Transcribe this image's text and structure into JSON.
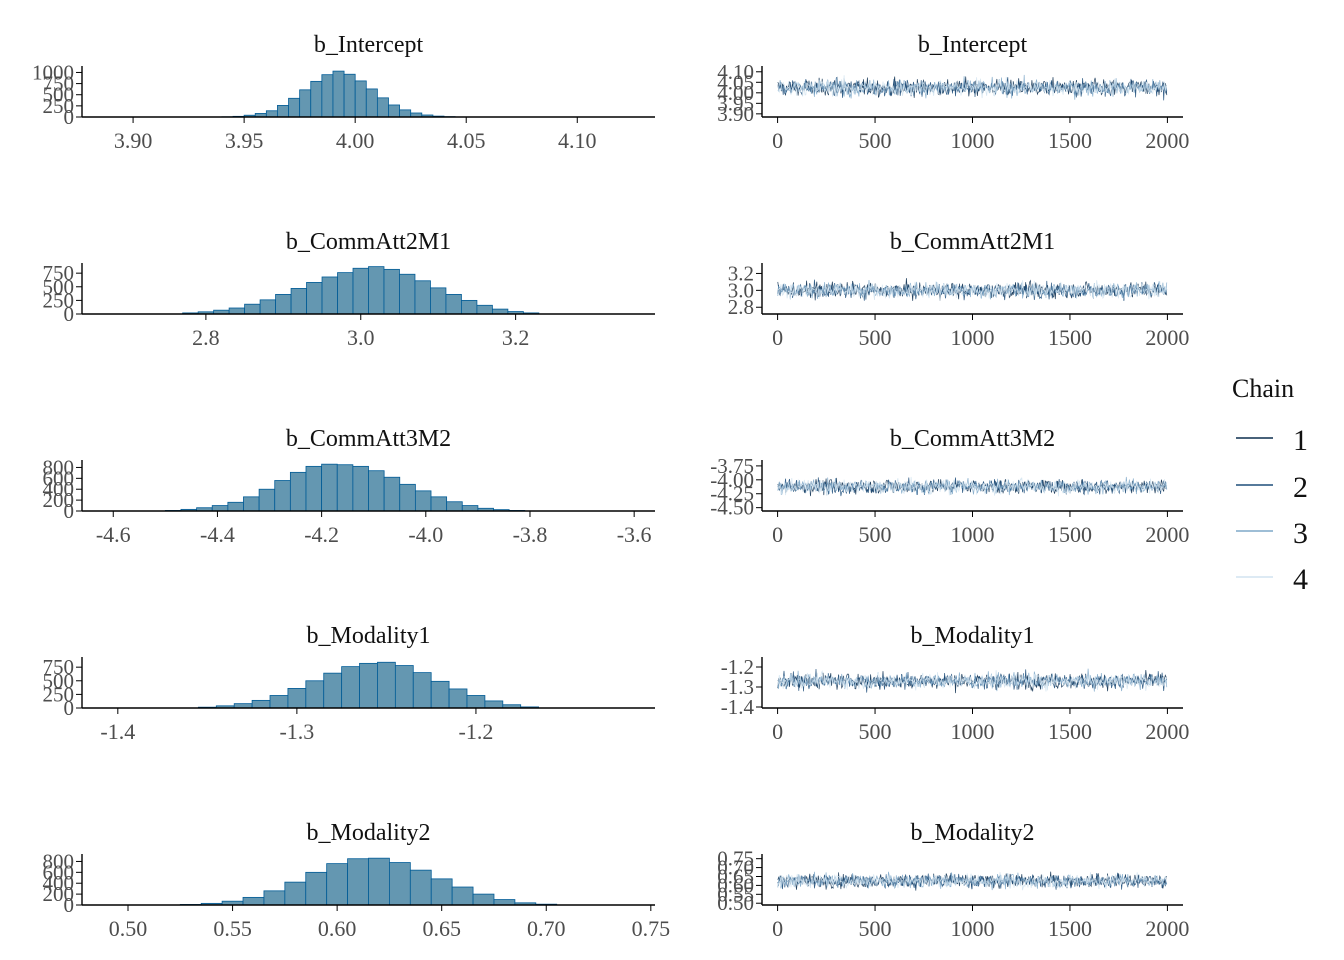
{
  "legend": {
    "title": "Chain",
    "chains": [
      {
        "label": "1",
        "color": "#0b2e4f"
      },
      {
        "label": "2",
        "color": "#1e4e7a"
      },
      {
        "label": "3",
        "color": "#7fa9c9"
      },
      {
        "label": "4",
        "color": "#d2e3f0"
      }
    ]
  },
  "colors": {
    "hist_fill": "#6497b1",
    "hist_edge": "#005b96",
    "axis": "#000000",
    "tick_text": "#4d4d4d"
  },
  "chart_data": [
    {
      "type": "bar",
      "title": "b_Intercept",
      "xticks": [
        "3.90",
        "3.95",
        "4.00",
        "4.05",
        "4.10"
      ],
      "xlim": [
        3.877,
        4.135
      ],
      "yticks": [
        "0",
        "250",
        "500",
        "750",
        "1000"
      ],
      "ylim": [
        0,
        1100
      ],
      "bin_start": 3.94,
      "bin_width": 0.005,
      "values": [
        5,
        15,
        40,
        80,
        140,
        260,
        420,
        610,
        800,
        950,
        1030,
        960,
        810,
        630,
        430,
        270,
        160,
        90,
        45,
        20,
        8
      ]
    },
    {
      "type": "line",
      "title": "b_Intercept",
      "xticks": [
        "0",
        "500",
        "1000",
        "1500",
        "2000"
      ],
      "xlim": [
        -80,
        2080
      ],
      "yticks": [
        "3.90",
        "3.95",
        "4.00",
        "4.05",
        "4.10"
      ],
      "ylim": [
        3.885,
        4.118
      ],
      "series_center": 4.025,
      "series_spread": 0.03
    },
    {
      "type": "bar",
      "title": "b_CommAtt2M1",
      "xticks": [
        "2.8",
        "3.0",
        "3.2"
      ],
      "xlim": [
        2.64,
        3.38
      ],
      "yticks": [
        "0",
        "250",
        "500",
        "750"
      ],
      "ylim": [
        0,
        900
      ],
      "bin_start": 2.77,
      "bin_width": 0.02,
      "values": [
        20,
        40,
        70,
        110,
        180,
        260,
        360,
        470,
        580,
        680,
        760,
        840,
        870,
        820,
        730,
        610,
        480,
        360,
        250,
        160,
        90,
        45,
        20
      ]
    },
    {
      "type": "line",
      "title": "b_CommAtt2M1",
      "xticks": [
        "0",
        "500",
        "1000",
        "1500",
        "2000"
      ],
      "xlim": [
        -80,
        2080
      ],
      "yticks": [
        "2.8",
        "3.0",
        "3.2"
      ],
      "ylim": [
        2.72,
        3.3
      ],
      "series_center": 3.0,
      "series_spread": 0.07
    },
    {
      "type": "bar",
      "title": "b_CommAtt3M2",
      "xticks": [
        "-4.6",
        "-4.4",
        "-4.2",
        "-4.0",
        "-3.8",
        "-3.6"
      ],
      "xlim": [
        -4.66,
        -3.56
      ],
      "yticks": [
        "0",
        "200",
        "400",
        "600",
        "800"
      ],
      "ylim": [
        0,
        900
      ],
      "bin_start": -4.5,
      "bin_width": 0.03,
      "values": [
        10,
        30,
        60,
        100,
        160,
        260,
        400,
        560,
        710,
        820,
        860,
        850,
        820,
        740,
        620,
        490,
        370,
        260,
        170,
        100,
        50,
        25,
        10
      ]
    },
    {
      "type": "line",
      "title": "b_CommAtt3M2",
      "xticks": [
        "0",
        "500",
        "1000",
        "1500",
        "2000"
      ],
      "xlim": [
        -80,
        2080
      ],
      "yticks": [
        "-4.50",
        "-4.25",
        "-4.00",
        "-3.75"
      ],
      "ylim": [
        -4.56,
        -3.68
      ],
      "series_center": -4.12,
      "series_spread": 0.1
    },
    {
      "type": "bar",
      "title": "b_Modality1",
      "xticks": [
        "-1.4",
        "-1.3",
        "-1.2"
      ],
      "xlim": [
        -1.42,
        -1.1
      ],
      "yticks": [
        "0",
        "250",
        "500",
        "750"
      ],
      "ylim": [
        0,
        900
      ],
      "bin_start": -1.355,
      "bin_width": 0.01,
      "values": [
        15,
        40,
        80,
        140,
        230,
        360,
        500,
        640,
        760,
        820,
        840,
        780,
        650,
        490,
        350,
        230,
        130,
        60,
        20
      ]
    },
    {
      "type": "line",
      "title": "b_Modality1",
      "xticks": [
        "0",
        "500",
        "1000",
        "1500",
        "2000"
      ],
      "xlim": [
        -80,
        2080
      ],
      "yticks": [
        "-1.4",
        "-1.3",
        "-1.2"
      ],
      "ylim": [
        -1.405,
        -1.16
      ],
      "series_center": -1.27,
      "series_spread": 0.03
    },
    {
      "type": "bar",
      "title": "b_Modality2",
      "xticks": [
        "0.50",
        "0.55",
        "0.60",
        "0.65",
        "0.70",
        "0.75"
      ],
      "xlim": [
        0.478,
        0.752
      ],
      "yticks": [
        "0",
        "200",
        "400",
        "600",
        "800"
      ],
      "ylim": [
        0,
        900
      ],
      "bin_start": 0.525,
      "bin_width": 0.01,
      "values": [
        10,
        30,
        70,
        140,
        260,
        420,
        600,
        760,
        850,
        860,
        780,
        640,
        480,
        330,
        200,
        100,
        40,
        15
      ]
    },
    {
      "type": "line",
      "title": "b_Modality2",
      "xticks": [
        "0",
        "500",
        "1000",
        "1500",
        "2000"
      ],
      "xlim": [
        -80,
        2080
      ],
      "yticks": [
        "0.50",
        "0.55",
        "0.60",
        "0.65",
        "0.70",
        "0.75"
      ],
      "ylim": [
        0.49,
        0.765
      ],
      "series_center": 0.625,
      "series_spread": 0.03
    }
  ]
}
